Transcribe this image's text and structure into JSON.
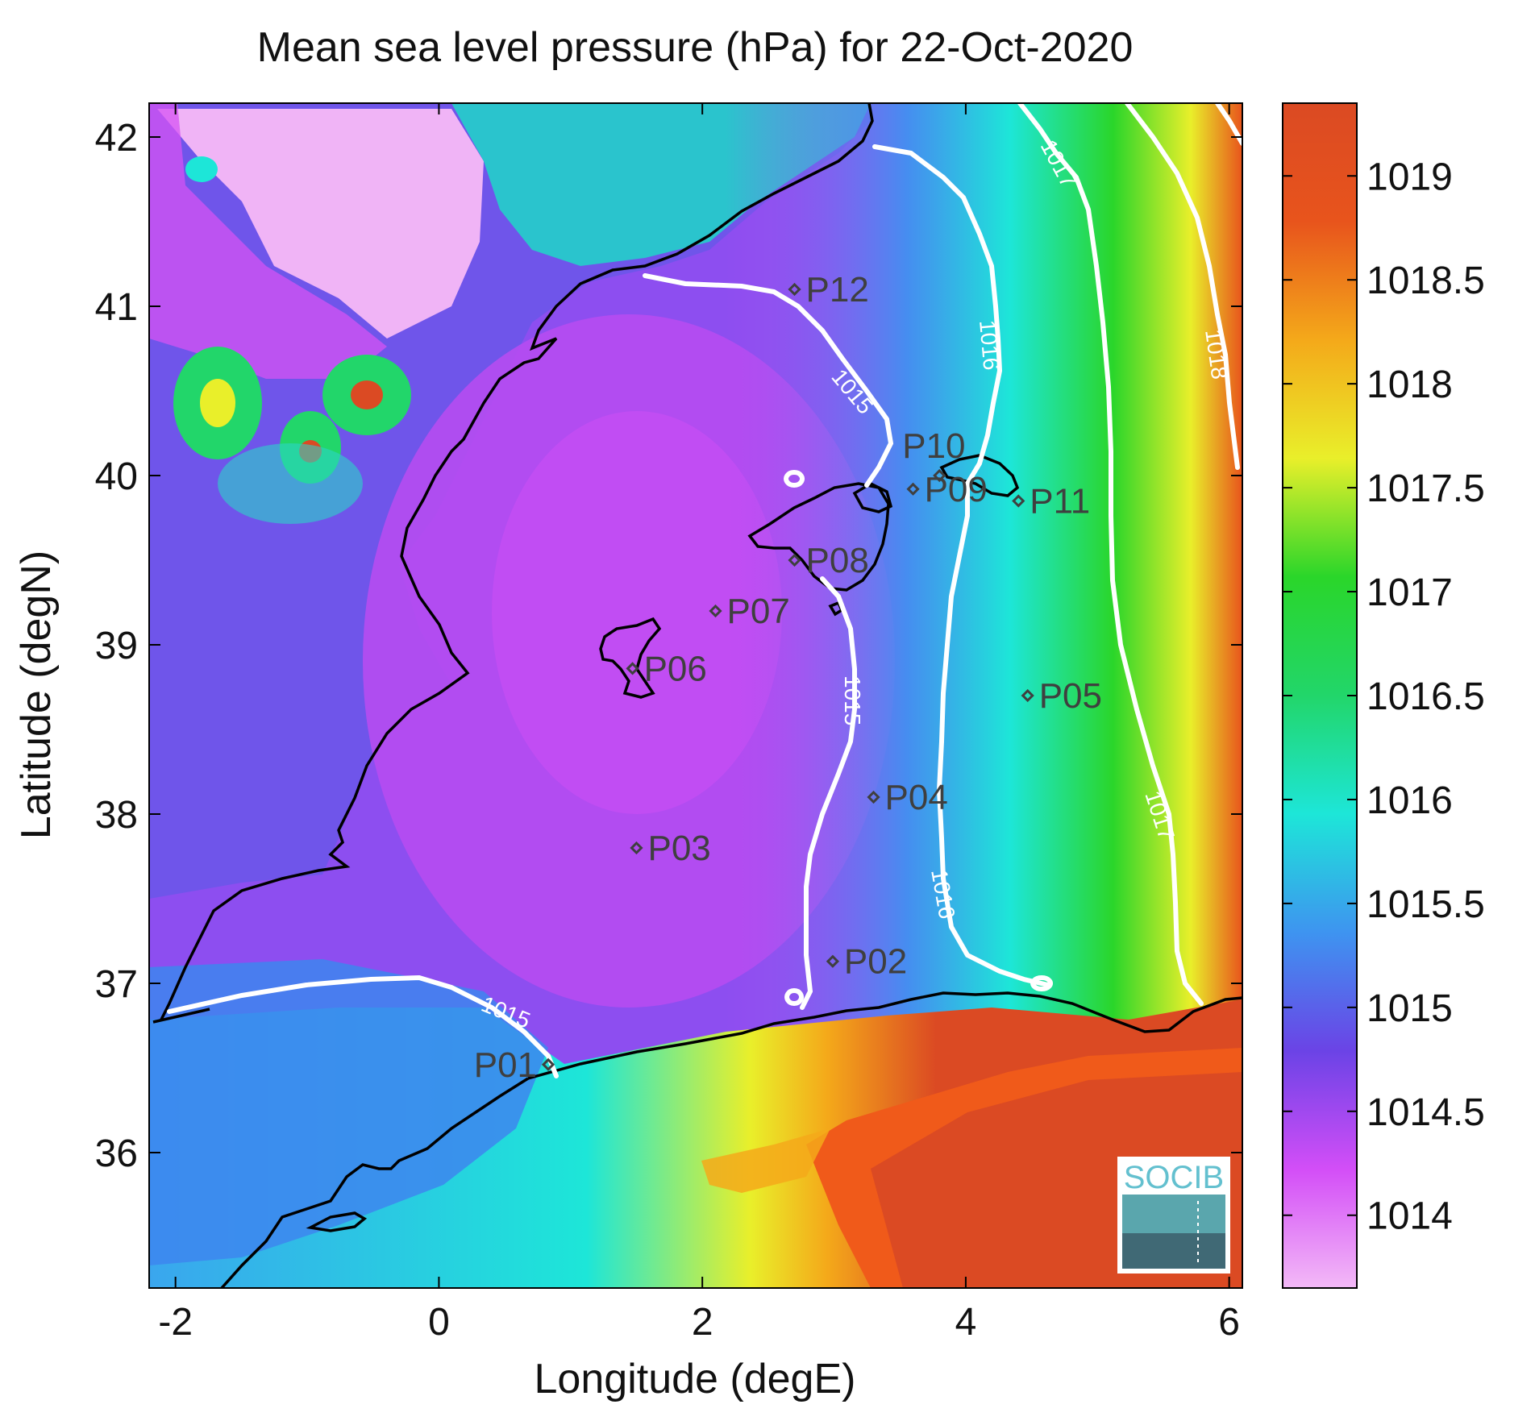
{
  "title": "Mean sea level pressure (hPa) for 22-Oct-2020",
  "x_axis": {
    "label": "Longitude (degE)",
    "range": [
      -2.2,
      6.1
    ],
    "ticks": [
      -2,
      0,
      2,
      4,
      6
    ],
    "tick_labels": [
      "-2",
      "0",
      "2",
      "4",
      "6"
    ]
  },
  "y_axis": {
    "label": "Latitude (degN)",
    "range": [
      35.2,
      42.2
    ],
    "ticks": [
      36,
      37,
      38,
      39,
      40,
      41,
      42
    ],
    "tick_labels": [
      "36",
      "37",
      "38",
      "39",
      "40",
      "41",
      "42"
    ]
  },
  "colorbar": {
    "range": [
      1013.65,
      1019.35
    ],
    "ticks": [
      1014,
      1014.5,
      1015,
      1015.5,
      1016,
      1016.5,
      1017,
      1017.5,
      1018,
      1018.5,
      1019
    ],
    "tick_labels": [
      "1014",
      "1014.5",
      "1015",
      "1015.5",
      "1016",
      "1016.5",
      "1017",
      "1017.5",
      "1018",
      "1018.5",
      "1019"
    ],
    "colors": [
      "#f3b9f7",
      "#d34ef7",
      "#6b43e6",
      "#3e94f0",
      "#1de6d8",
      "#22d66a",
      "#2ad62a",
      "#e9ef2a",
      "#f4a91a",
      "#e8541c",
      "#db4a23"
    ]
  },
  "contour_labels": [
    "1015",
    "1015",
    "1015",
    "1016",
    "1016",
    "1017",
    "1017",
    "1018"
  ],
  "stations": [
    {
      "id": "P01",
      "lon": 0.83,
      "lat": 36.52
    },
    {
      "id": "P02",
      "lon": 2.99,
      "lat": 37.13
    },
    {
      "id": "P03",
      "lon": 1.5,
      "lat": 37.8
    },
    {
      "id": "P04",
      "lon": 3.3,
      "lat": 38.1
    },
    {
      "id": "P05",
      "lon": 4.47,
      "lat": 38.7
    },
    {
      "id": "P06",
      "lon": 1.47,
      "lat": 38.86
    },
    {
      "id": "P07",
      "lon": 2.1,
      "lat": 39.2
    },
    {
      "id": "P08",
      "lon": 2.7,
      "lat": 39.5
    },
    {
      "id": "P09",
      "lon": 3.6,
      "lat": 39.92
    },
    {
      "id": "P10",
      "lon": 3.8,
      "lat": 40.0
    },
    {
      "id": "P11",
      "lon": 4.4,
      "lat": 39.85
    },
    {
      "id": "P12",
      "lon": 2.7,
      "lat": 41.1
    }
  ],
  "logo_text": "SOCIB",
  "colors": {
    "coast": "#000000",
    "contour": "#ffffff",
    "station_marker": "#3f3f3f",
    "sea_low": "#b64cf1",
    "sea_mid": "#1de6d8",
    "sea_high": "#db4a23"
  }
}
